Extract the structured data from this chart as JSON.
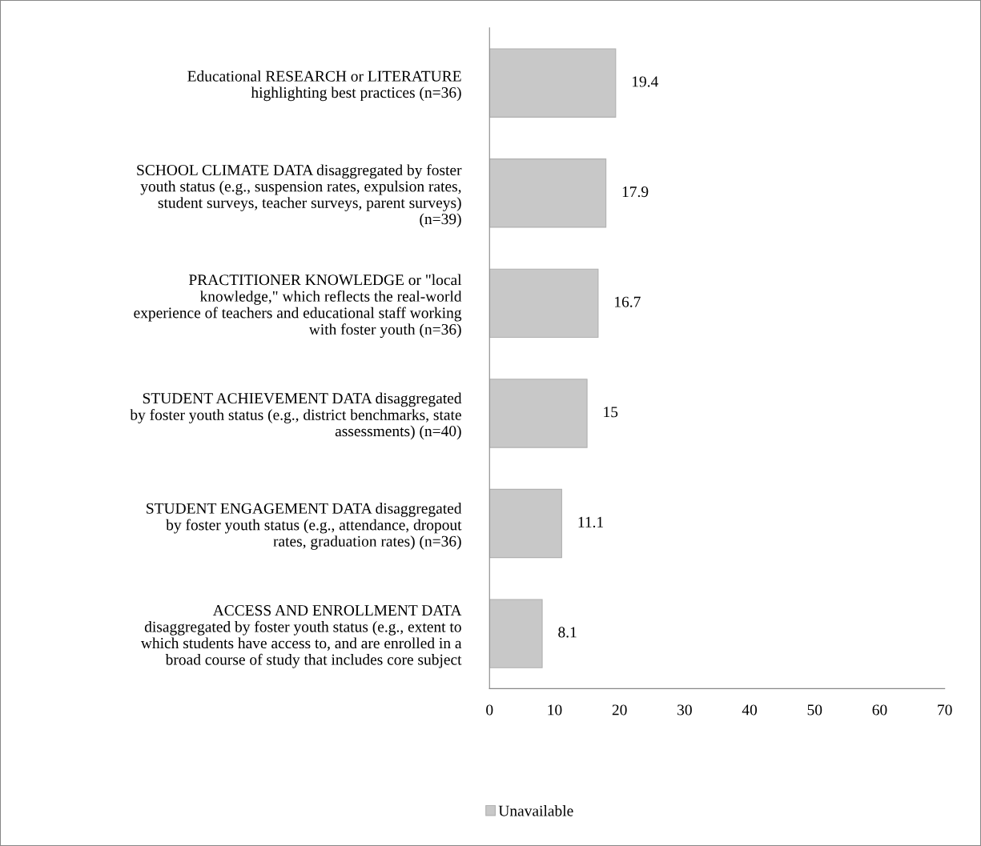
{
  "chart_data": {
    "type": "bar",
    "orientation": "horizontal",
    "categories": [
      "Educational RESEARCH or LITERATURE\nhighlighting best practices (n=36)",
      "SCHOOL CLIMATE DATA disaggregated by foster\nyouth status (e.g., suspension rates, expulsion rates,\nstudent surveys, teacher surveys, parent surveys)\n(n=39)",
      "PRACTITIONER KNOWLEDGE or \"local\nknowledge,\" which reflects the real-world\nexperience of teachers and educational staff working\nwith foster youth (n=36)",
      "STUDENT ACHIEVEMENT DATA disaggregated\nby foster youth status (e.g., district benchmarks, state\nassessments) (n=40)",
      "STUDENT ENGAGEMENT DATA disaggregated\nby foster youth status (e.g., attendance, dropout\nrates, graduation rates) (n=36)",
      "ACCESS AND ENROLLMENT DATA\ndisaggregated by foster youth status (e.g., extent to\nwhich students have access to, and are enrolled in a\nbroad course of study that includes core subject"
    ],
    "series": [
      {
        "name": "Unavailable",
        "color": "#c8c8c8",
        "values": [
          19.4,
          17.9,
          16.7,
          15,
          11.1,
          8.1
        ]
      }
    ],
    "xlim": [
      0,
      70
    ],
    "xticks": [
      0,
      10,
      20,
      30,
      40,
      50,
      60,
      70
    ],
    "data_labels": true,
    "grid": false,
    "legend": "bottom"
  }
}
